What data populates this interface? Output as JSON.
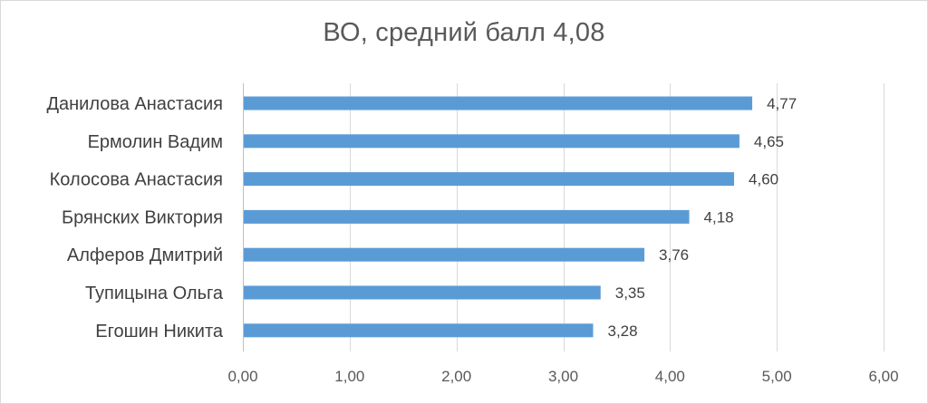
{
  "chart_data": {
    "type": "bar",
    "orientation": "horizontal",
    "title": "ВО, средний балл 4,08",
    "categories": [
      "Данилова Анастасия",
      "Ермолин Вадим",
      "Колосова Анастасия",
      "Брянских Виктория",
      "Алферов Дмитрий",
      "Тупицына Ольга",
      "Егошин Никита"
    ],
    "values": [
      4.77,
      4.65,
      4.6,
      4.18,
      3.76,
      3.35,
      3.28
    ],
    "data_labels": [
      "4,77",
      "4,65",
      "4,60",
      "4,18",
      "3,76",
      "3,35",
      "3,28"
    ],
    "xlim": [
      0,
      6
    ],
    "x_ticks": [
      0,
      1,
      2,
      3,
      4,
      5,
      6
    ],
    "x_tick_labels": [
      "0,00",
      "1,00",
      "2,00",
      "3,00",
      "4,00",
      "5,00",
      "6,00"
    ],
    "xlabel": "",
    "ylabel": "",
    "grid": true,
    "legend": "none",
    "bar_color": "#5b9bd5",
    "grid_color": "#d9d9d9"
  }
}
